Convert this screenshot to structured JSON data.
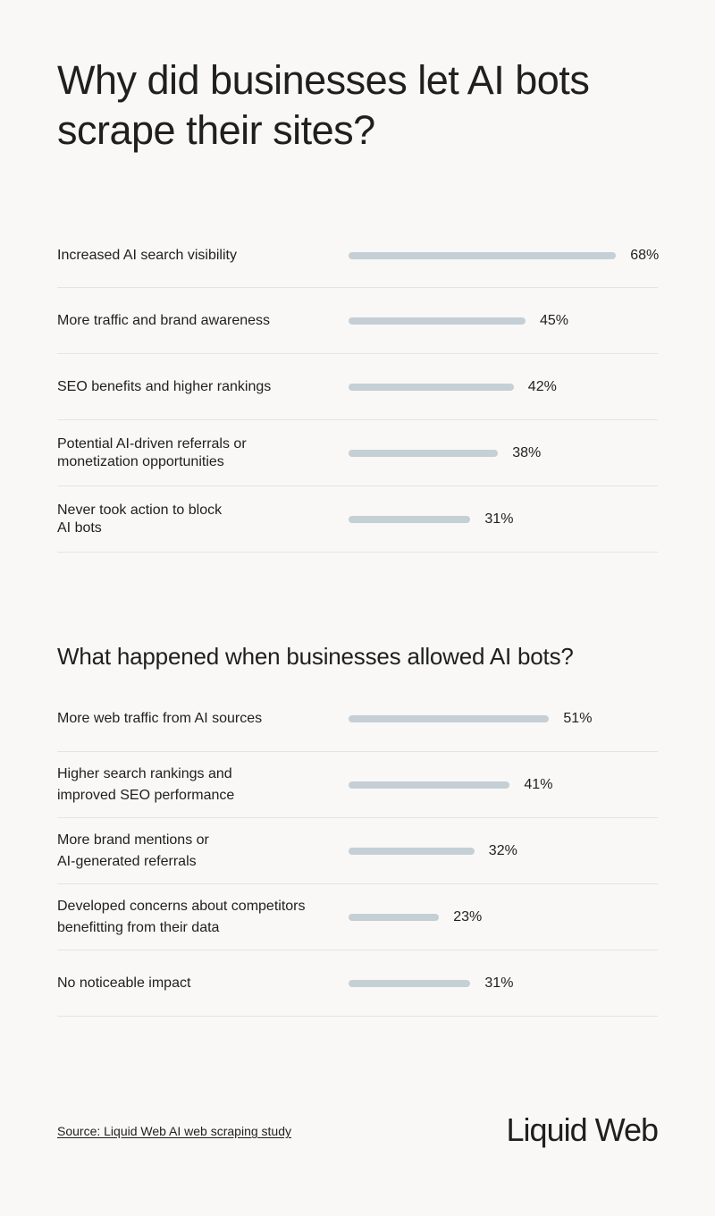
{
  "title": "Why did businesses let AI bots scrape their sites?",
  "sections": [
    {
      "title": "",
      "rows": [
        {
          "label": "Increased AI search visibility",
          "value": 68,
          "display": "68%"
        },
        {
          "label": "More traffic and brand awareness",
          "value": 45,
          "display": "45%"
        },
        {
          "label": "SEO benefits and higher rankings",
          "value": 42,
          "display": "42%"
        },
        {
          "label": "Potential AI-driven referrals or monetization opportunities",
          "value": 38,
          "display": "38%"
        },
        {
          "label": "Never took action to block AI bots",
          "value": 31,
          "display": "31%"
        }
      ]
    },
    {
      "title": "What happened when businesses allowed AI bots?",
      "rows": [
        {
          "label": "More web traffic from AI sources",
          "value": 51,
          "display": "51%"
        },
        {
          "label": "Higher search rankings and improved SEO performance",
          "value": 41,
          "display": "41%"
        },
        {
          "label": "More brand mentions or AI-generated referrals",
          "value": 32,
          "display": "32%"
        },
        {
          "label": "Developed concerns about competitors benefitting from their data",
          "value": 23,
          "display": "23%"
        },
        {
          "label": "No noticeable impact",
          "value": 31,
          "display": "31%"
        }
      ]
    }
  ],
  "footer": {
    "source": "Source: Liquid Web AI web scraping study",
    "logo": "Liquid Web"
  },
  "colors": {
    "background": "#f9f8f6",
    "bar": "#c5cfd6",
    "text": "#1f1f1f",
    "divider": "#e6e4e1"
  },
  "chart_data": [
    {
      "type": "bar",
      "orientation": "horizontal",
      "title": "Why did businesses let AI bots scrape their sites?",
      "categories": [
        "Increased AI search visibility",
        "More traffic and brand awareness",
        "SEO benefits and higher rankings",
        "Potential AI-driven referrals or monetization opportunities",
        "Never took action to block AI bots"
      ],
      "values": [
        68,
        45,
        42,
        38,
        31
      ],
      "unit": "%",
      "xlabel": "",
      "ylabel": "",
      "grid": false,
      "legend": null
    },
    {
      "type": "bar",
      "orientation": "horizontal",
      "title": "What happened when businesses allowed AI bots?",
      "categories": [
        "More web traffic from AI sources",
        "Higher search rankings and improved SEO performance",
        "More brand mentions or AI-generated referrals",
        "Developed concerns about competitors benefitting from their data",
        "No noticeable impact"
      ],
      "values": [
        51,
        41,
        32,
        23,
        31
      ],
      "unit": "%",
      "xlabel": "",
      "ylabel": "",
      "grid": false,
      "legend": null
    }
  ]
}
